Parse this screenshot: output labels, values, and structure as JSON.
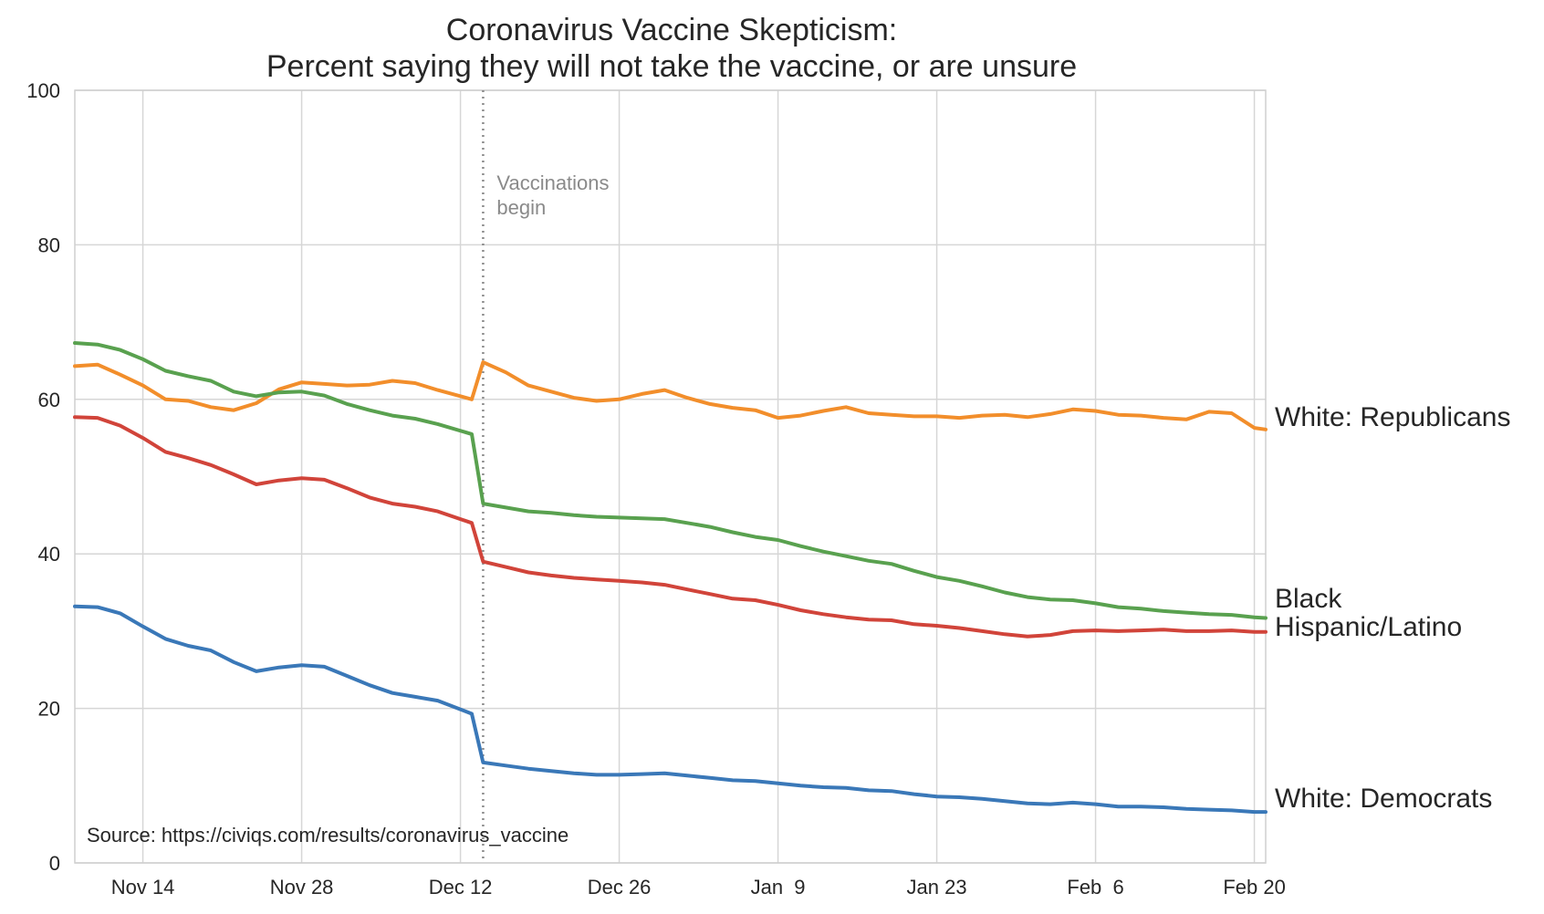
{
  "chart_data": {
    "type": "line",
    "title": "Coronavirus Vaccine Skepticism:",
    "subtitle": "Percent saying they will not take the vaccine, or are unsure",
    "xlabel": "",
    "ylabel": "",
    "xlim": [
      "2020-11-08",
      "2021-02-21"
    ],
    "ylim": [
      0,
      100
    ],
    "grid": true,
    "legend": "labels at right end of each line",
    "x_ticks": [
      {
        "date": "2020-11-14",
        "label": "Nov 14"
      },
      {
        "date": "2020-11-28",
        "label": "Nov 28"
      },
      {
        "date": "2020-12-12",
        "label": "Dec 12"
      },
      {
        "date": "2020-12-26",
        "label": "Dec 26"
      },
      {
        "date": "2021-01-09",
        "label": "Jan  9"
      },
      {
        "date": "2021-01-23",
        "label": "Jan 23"
      },
      {
        "date": "2021-02-06",
        "label": "Feb  6"
      },
      {
        "date": "2021-02-20",
        "label": "Feb 20"
      }
    ],
    "y_ticks": [
      0,
      20,
      40,
      60,
      80,
      100
    ],
    "annotations": [
      {
        "x": "2020-12-14",
        "type": "vertical-dotted-line",
        "text_lines": [
          "Vaccinations",
          "begin"
        ]
      }
    ],
    "source": "Source: https://civiqs.com/results/coronavirus_vaccine",
    "series": [
      {
        "name": "White: Republicans",
        "color": "#f28e2b",
        "points": [
          [
            "2020-11-08",
            64.3
          ],
          [
            "2020-11-10",
            64.5
          ],
          [
            "2020-11-12",
            63.2
          ],
          [
            "2020-11-14",
            61.8
          ],
          [
            "2020-11-16",
            60.0
          ],
          [
            "2020-11-18",
            59.8
          ],
          [
            "2020-11-20",
            59.0
          ],
          [
            "2020-11-22",
            58.6
          ],
          [
            "2020-11-24",
            59.5
          ],
          [
            "2020-11-26",
            61.3
          ],
          [
            "2020-11-28",
            62.2
          ],
          [
            "2020-11-30",
            62.0
          ],
          [
            "2020-12-02",
            61.8
          ],
          [
            "2020-12-04",
            61.9
          ],
          [
            "2020-12-06",
            62.4
          ],
          [
            "2020-12-08",
            62.1
          ],
          [
            "2020-12-10",
            61.2
          ],
          [
            "2020-12-13",
            60.0
          ],
          [
            "2020-12-14",
            64.8
          ],
          [
            "2020-12-16",
            63.5
          ],
          [
            "2020-12-18",
            61.8
          ],
          [
            "2020-12-20",
            61.0
          ],
          [
            "2020-12-22",
            60.2
          ],
          [
            "2020-12-24",
            59.8
          ],
          [
            "2020-12-26",
            60.0
          ],
          [
            "2020-12-28",
            60.7
          ],
          [
            "2020-12-30",
            61.2
          ],
          [
            "2021-01-01",
            60.2
          ],
          [
            "2021-01-03",
            59.4
          ],
          [
            "2021-01-05",
            58.9
          ],
          [
            "2021-01-07",
            58.6
          ],
          [
            "2021-01-09",
            57.6
          ],
          [
            "2021-01-11",
            57.9
          ],
          [
            "2021-01-13",
            58.5
          ],
          [
            "2021-01-15",
            59.0
          ],
          [
            "2021-01-17",
            58.2
          ],
          [
            "2021-01-19",
            58.0
          ],
          [
            "2021-01-21",
            57.8
          ],
          [
            "2021-01-23",
            57.8
          ],
          [
            "2021-01-25",
            57.6
          ],
          [
            "2021-01-27",
            57.9
          ],
          [
            "2021-01-29",
            58.0
          ],
          [
            "2021-01-31",
            57.7
          ],
          [
            "2021-02-02",
            58.1
          ],
          [
            "2021-02-04",
            58.7
          ],
          [
            "2021-02-06",
            58.5
          ],
          [
            "2021-02-08",
            58.0
          ],
          [
            "2021-02-10",
            57.9
          ],
          [
            "2021-02-12",
            57.6
          ],
          [
            "2021-02-14",
            57.4
          ],
          [
            "2021-02-16",
            58.4
          ],
          [
            "2021-02-18",
            58.2
          ],
          [
            "2021-02-20",
            56.3
          ],
          [
            "2021-02-21",
            56.1
          ]
        ]
      },
      {
        "name": "Black",
        "color": "#59a14f",
        "points": [
          [
            "2020-11-08",
            67.3
          ],
          [
            "2020-11-10",
            67.1
          ],
          [
            "2020-11-12",
            66.4
          ],
          [
            "2020-11-14",
            65.2
          ],
          [
            "2020-11-16",
            63.7
          ],
          [
            "2020-11-18",
            63.0
          ],
          [
            "2020-11-20",
            62.4
          ],
          [
            "2020-11-22",
            61.0
          ],
          [
            "2020-11-24",
            60.4
          ],
          [
            "2020-11-26",
            60.9
          ],
          [
            "2020-11-28",
            61.0
          ],
          [
            "2020-11-30",
            60.5
          ],
          [
            "2020-12-02",
            59.4
          ],
          [
            "2020-12-04",
            58.6
          ],
          [
            "2020-12-06",
            57.9
          ],
          [
            "2020-12-08",
            57.5
          ],
          [
            "2020-12-10",
            56.8
          ],
          [
            "2020-12-13",
            55.5
          ],
          [
            "2020-12-14",
            46.5
          ],
          [
            "2020-12-16",
            46.0
          ],
          [
            "2020-12-18",
            45.5
          ],
          [
            "2020-12-20",
            45.3
          ],
          [
            "2020-12-22",
            45.0
          ],
          [
            "2020-12-24",
            44.8
          ],
          [
            "2020-12-26",
            44.7
          ],
          [
            "2020-12-28",
            44.6
          ],
          [
            "2020-12-30",
            44.5
          ],
          [
            "2021-01-01",
            44.0
          ],
          [
            "2021-01-03",
            43.5
          ],
          [
            "2021-01-05",
            42.8
          ],
          [
            "2021-01-07",
            42.2
          ],
          [
            "2021-01-09",
            41.8
          ],
          [
            "2021-01-11",
            41.0
          ],
          [
            "2021-01-13",
            40.3
          ],
          [
            "2021-01-15",
            39.7
          ],
          [
            "2021-01-17",
            39.1
          ],
          [
            "2021-01-19",
            38.7
          ],
          [
            "2021-01-21",
            37.8
          ],
          [
            "2021-01-23",
            37.0
          ],
          [
            "2021-01-25",
            36.5
          ],
          [
            "2021-01-27",
            35.8
          ],
          [
            "2021-01-29",
            35.0
          ],
          [
            "2021-01-31",
            34.4
          ],
          [
            "2021-02-02",
            34.1
          ],
          [
            "2021-02-04",
            34.0
          ],
          [
            "2021-02-06",
            33.6
          ],
          [
            "2021-02-08",
            33.1
          ],
          [
            "2021-02-10",
            32.9
          ],
          [
            "2021-02-12",
            32.6
          ],
          [
            "2021-02-14",
            32.4
          ],
          [
            "2021-02-16",
            32.2
          ],
          [
            "2021-02-18",
            32.1
          ],
          [
            "2021-02-20",
            31.8
          ],
          [
            "2021-02-21",
            31.7
          ]
        ]
      },
      {
        "name": "Hispanic/Latino",
        "color": "#d1443a",
        "points": [
          [
            "2020-11-08",
            57.7
          ],
          [
            "2020-11-10",
            57.6
          ],
          [
            "2020-11-12",
            56.6
          ],
          [
            "2020-11-14",
            55.0
          ],
          [
            "2020-11-16",
            53.2
          ],
          [
            "2020-11-18",
            52.4
          ],
          [
            "2020-11-20",
            51.5
          ],
          [
            "2020-11-22",
            50.3
          ],
          [
            "2020-11-24",
            49.0
          ],
          [
            "2020-11-26",
            49.5
          ],
          [
            "2020-11-28",
            49.8
          ],
          [
            "2020-11-30",
            49.6
          ],
          [
            "2020-12-02",
            48.5
          ],
          [
            "2020-12-04",
            47.3
          ],
          [
            "2020-12-06",
            46.5
          ],
          [
            "2020-12-08",
            46.1
          ],
          [
            "2020-12-10",
            45.5
          ],
          [
            "2020-12-13",
            44.0
          ],
          [
            "2020-12-14",
            39.0
          ],
          [
            "2020-12-16",
            38.3
          ],
          [
            "2020-12-18",
            37.6
          ],
          [
            "2020-12-20",
            37.2
          ],
          [
            "2020-12-22",
            36.9
          ],
          [
            "2020-12-24",
            36.7
          ],
          [
            "2020-12-26",
            36.5
          ],
          [
            "2020-12-28",
            36.3
          ],
          [
            "2020-12-30",
            36.0
          ],
          [
            "2021-01-01",
            35.4
          ],
          [
            "2021-01-03",
            34.8
          ],
          [
            "2021-01-05",
            34.2
          ],
          [
            "2021-01-07",
            34.0
          ],
          [
            "2021-01-09",
            33.4
          ],
          [
            "2021-01-11",
            32.7
          ],
          [
            "2021-01-13",
            32.2
          ],
          [
            "2021-01-15",
            31.8
          ],
          [
            "2021-01-17",
            31.5
          ],
          [
            "2021-01-19",
            31.4
          ],
          [
            "2021-01-21",
            30.9
          ],
          [
            "2021-01-23",
            30.7
          ],
          [
            "2021-01-25",
            30.4
          ],
          [
            "2021-01-27",
            30.0
          ],
          [
            "2021-01-29",
            29.6
          ],
          [
            "2021-01-31",
            29.3
          ],
          [
            "2021-02-02",
            29.5
          ],
          [
            "2021-02-04",
            30.0
          ],
          [
            "2021-02-06",
            30.1
          ],
          [
            "2021-02-08",
            30.0
          ],
          [
            "2021-02-10",
            30.1
          ],
          [
            "2021-02-12",
            30.2
          ],
          [
            "2021-02-14",
            30.0
          ],
          [
            "2021-02-16",
            30.0
          ],
          [
            "2021-02-18",
            30.1
          ],
          [
            "2021-02-20",
            29.9
          ],
          [
            "2021-02-21",
            29.9
          ]
        ]
      },
      {
        "name": "White: Democrats",
        "color": "#3a78b8",
        "points": [
          [
            "2020-11-08",
            33.2
          ],
          [
            "2020-11-10",
            33.1
          ],
          [
            "2020-11-12",
            32.3
          ],
          [
            "2020-11-14",
            30.6
          ],
          [
            "2020-11-16",
            29.0
          ],
          [
            "2020-11-18",
            28.1
          ],
          [
            "2020-11-20",
            27.5
          ],
          [
            "2020-11-22",
            26.0
          ],
          [
            "2020-11-24",
            24.8
          ],
          [
            "2020-11-26",
            25.3
          ],
          [
            "2020-11-28",
            25.6
          ],
          [
            "2020-11-30",
            25.4
          ],
          [
            "2020-12-02",
            24.2
          ],
          [
            "2020-12-04",
            23.0
          ],
          [
            "2020-12-06",
            22.0
          ],
          [
            "2020-12-08",
            21.5
          ],
          [
            "2020-12-10",
            21.0
          ],
          [
            "2020-12-13",
            19.3
          ],
          [
            "2020-12-14",
            13.0
          ],
          [
            "2020-12-16",
            12.6
          ],
          [
            "2020-12-18",
            12.2
          ],
          [
            "2020-12-20",
            11.9
          ],
          [
            "2020-12-22",
            11.6
          ],
          [
            "2020-12-24",
            11.4
          ],
          [
            "2020-12-26",
            11.4
          ],
          [
            "2020-12-28",
            11.5
          ],
          [
            "2020-12-30",
            11.6
          ],
          [
            "2021-01-01",
            11.3
          ],
          [
            "2021-01-03",
            11.0
          ],
          [
            "2021-01-05",
            10.7
          ],
          [
            "2021-01-07",
            10.6
          ],
          [
            "2021-01-09",
            10.3
          ],
          [
            "2021-01-11",
            10.0
          ],
          [
            "2021-01-13",
            9.8
          ],
          [
            "2021-01-15",
            9.7
          ],
          [
            "2021-01-17",
            9.4
          ],
          [
            "2021-01-19",
            9.3
          ],
          [
            "2021-01-21",
            8.9
          ],
          [
            "2021-01-23",
            8.6
          ],
          [
            "2021-01-25",
            8.5
          ],
          [
            "2021-01-27",
            8.3
          ],
          [
            "2021-01-29",
            8.0
          ],
          [
            "2021-01-31",
            7.7
          ],
          [
            "2021-02-02",
            7.6
          ],
          [
            "2021-02-04",
            7.8
          ],
          [
            "2021-02-06",
            7.6
          ],
          [
            "2021-02-08",
            7.3
          ],
          [
            "2021-02-10",
            7.3
          ],
          [
            "2021-02-12",
            7.2
          ],
          [
            "2021-02-14",
            7.0
          ],
          [
            "2021-02-16",
            6.9
          ],
          [
            "2021-02-18",
            6.8
          ],
          [
            "2021-02-20",
            6.6
          ],
          [
            "2021-02-21",
            6.6
          ]
        ]
      }
    ]
  }
}
